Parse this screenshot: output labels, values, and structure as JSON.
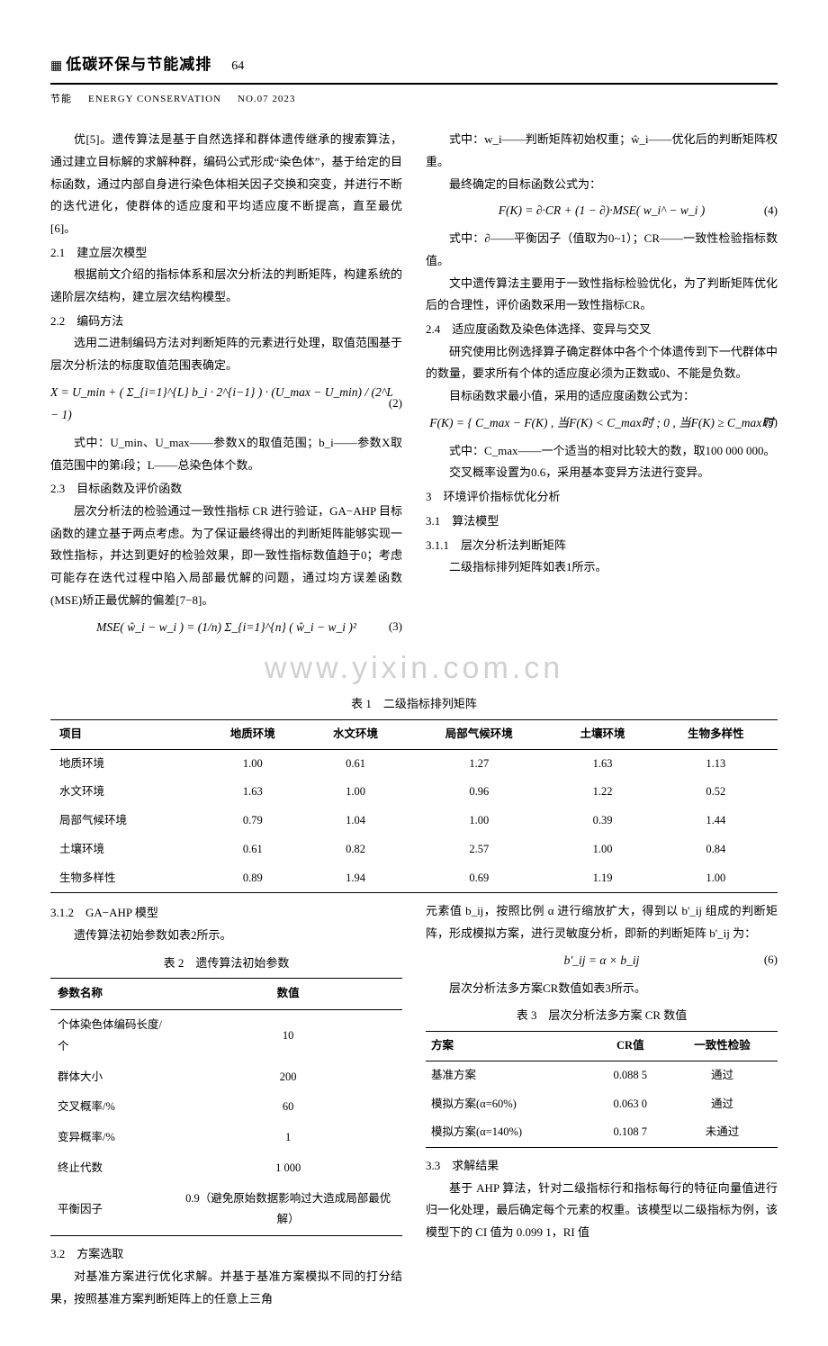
{
  "header": {
    "icon": "▦",
    "title": "低碳环保与节能减排",
    "page": "64",
    "sub_cn": "节能",
    "sub_en": "ENERGY CONSERVATION",
    "issue": "NO.07 2023"
  },
  "left": {
    "p1": "优[5]。遗传算法是基于自然选择和群体遗传继承的搜索算法，通过建立目标解的求解种群，编码公式形成“染色体”，基于给定的目标函数，通过内部自身进行染色体相关因子交换和突变，并进行不断的迭代进化，使群体的适应度和平均适应度不断提高，直至最优[6]。",
    "s21": "2.1　建立层次模型",
    "p21": "根据前文介绍的指标体系和层次分析法的判断矩阵，构建系统的递阶层次结构，建立层次结构模型。",
    "s22": "2.2　编码方法",
    "p22": "选用二进制编码方法对判断矩阵的元素进行处理，取值范围基于层次分析法的标度取值范围表确定。",
    "eq2": "X = U_min + ( Σ_{i=1}^{L} b_i · 2^{i−1} ) · (U_max − U_min) / (2^L − 1)",
    "eq2_num": "(2)",
    "p22b": "式中：U_min、U_max——参数X的取值范围；b_i——参数X取值范围中的第i段；L——总染色体个数。",
    "s23": "2.3　目标函数及评价函数",
    "p23a": "层次分析法的检验通过一致性指标 CR 进行验证，GA−AHP 目标函数的建立基于两点考虑。为了保证最终得出的判断矩阵能够实现一致性指标，并达到更好的检验效果，即一致性指标数值趋于0；考虑可能存在迭代过程中陷入局部最优解的问题，通过均方误差函数(MSE)矫正最优解的偏差[7−8]。",
    "eq3": "MSE( ŵ_i − w_i ) = (1/n) Σ_{i=1}^{n} ( ŵ_i − w_i )²",
    "eq3_num": "(3)"
  },
  "right": {
    "p_w": "式中：w_i——判断矩阵初始权重；ŵ_i——优化后的判断矩阵权重。",
    "p_final": "最终确定的目标函数公式为：",
    "eq4": "F(K) = ∂·CR + (1 − ∂)·MSE( w_i^ − w_i )",
    "eq4_num": "(4)",
    "p_eq4": "式中：∂——平衡因子（值取为0~1）；CR——一致性检验指标数值。",
    "p_cr": "文中遗传算法主要用于一致性指标检验优化，为了判断矩阵优化后的合理性，评价函数采用一致性指标CR。",
    "s24": "2.4　适应度函数及染色体选择、变异与交叉",
    "p24a": "研究使用比例选择算子确定群体中各个个体遗传到下一代群体中的数量，要求所有个体的适应度必须为正数或0、不能是负数。",
    "p24b": "目标函数求最小值，采用的适应度函数公式为：",
    "eq5": "F(K) = { C_max − F(K) , 当F(K) < C_max时 ; 0 , 当F(K) ≥ C_max时",
    "eq5_num": "(5)",
    "p_eq5": "式中：C_max——一个适当的相对比较大的数，取100 000 000。",
    "p_cross": "交叉概率设置为0.6，采用基本变异方法进行变异。",
    "s3": "3　环境评价指标优化分析",
    "s31": "3.1　算法模型",
    "s311": "3.1.1　层次分析法判断矩阵",
    "p311": "二级指标排列矩阵如表1所示。"
  },
  "watermark": "www.yixin.com.cn",
  "table1": {
    "caption": "表 1　二级指标排列矩阵",
    "columns": [
      "项目",
      "地质环境",
      "水文环境",
      "局部气候环境",
      "土壤环境",
      "生物多样性"
    ],
    "rows": [
      [
        "地质环境",
        "1.00",
        "0.61",
        "1.27",
        "1.63",
        "1.13"
      ],
      [
        "水文环境",
        "1.63",
        "1.00",
        "0.96",
        "1.22",
        "0.52"
      ],
      [
        "局部气候环境",
        "0.79",
        "1.04",
        "1.00",
        "0.39",
        "1.44"
      ],
      [
        "土壤环境",
        "0.61",
        "0.82",
        "2.57",
        "1.00",
        "0.84"
      ],
      [
        "生物多样性",
        "0.89",
        "1.94",
        "0.69",
        "1.19",
        "1.00"
      ]
    ]
  },
  "left2": {
    "s312": "3.1.2　GA−AHP 模型",
    "p312": "遗传算法初始参数如表2所示。"
  },
  "table2": {
    "caption": "表 2　遗传算法初始参数",
    "columns": [
      "参数名称",
      "数值"
    ],
    "rows": [
      [
        "个体染色体编码长度/个",
        "10"
      ],
      [
        "群体大小",
        "200"
      ],
      [
        "交叉概率/%",
        "60"
      ],
      [
        "变异概率/%",
        "1"
      ],
      [
        "终止代数",
        "1 000"
      ],
      [
        "平衡因子",
        "0.9（避免原始数据影响过大造成局部最优解）"
      ]
    ]
  },
  "left2b": {
    "s32": "3.2　方案选取",
    "p32": "对基准方案进行优化求解。并基于基准方案模拟不同的打分结果，按照基准方案判断矩阵上的任意上三角"
  },
  "right2": {
    "p_elem": "元素值 b_ij，按照比例 α 进行缩放扩大，得到以 b'_ij 组成的判断矩阵，形成模拟方案，进行灵敏度分析，即新的判断矩阵 b'_ij 为：",
    "eq6": "b'_ij = α × b_ij",
    "eq6_num": "(6)",
    "p_layer": "层次分析法多方案CR数值如表3所示。"
  },
  "table3": {
    "caption": "表 3　层次分析法多方案 CR 数值",
    "columns": [
      "方案",
      "CR值",
      "一致性检验"
    ],
    "rows": [
      [
        "基准方案",
        "0.088 5",
        "通过"
      ],
      [
        "模拟方案(α=60%)",
        "0.063 0",
        "通过"
      ],
      [
        "模拟方案(α=140%)",
        "0.108 7",
        "未通过"
      ]
    ]
  },
  "right2b": {
    "s33": "3.3　求解结果",
    "p33": "基于 AHP 算法，针对二级指标行和指标每行的特征向量值进行归一化处理，最后确定每个元素的权重。该模型以二级指标为例，该模型下的 CI 值为 0.099 1，RI 值"
  }
}
